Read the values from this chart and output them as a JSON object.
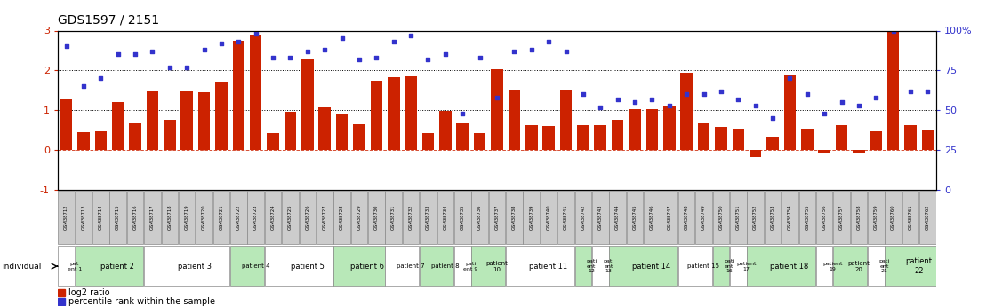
{
  "title": "GDS1597 / 2151",
  "gsm_labels": [
    "GSM38712",
    "GSM38713",
    "GSM38714",
    "GSM38715",
    "GSM38716",
    "GSM38717",
    "GSM38718",
    "GSM38719",
    "GSM38720",
    "GSM38721",
    "GSM38722",
    "GSM38723",
    "GSM38724",
    "GSM38725",
    "GSM38726",
    "GSM38727",
    "GSM38728",
    "GSM38729",
    "GSM38730",
    "GSM38731",
    "GSM38732",
    "GSM38733",
    "GSM38734",
    "GSM38735",
    "GSM38736",
    "GSM38737",
    "GSM38738",
    "GSM38739",
    "GSM38740",
    "GSM38741",
    "GSM38742",
    "GSM38743",
    "GSM38744",
    "GSM38745",
    "GSM38746",
    "GSM38747",
    "GSM38748",
    "GSM38749",
    "GSM38750",
    "GSM38751",
    "GSM38752",
    "GSM38753",
    "GSM38754",
    "GSM38755",
    "GSM38756",
    "GSM38757",
    "GSM38758",
    "GSM38759",
    "GSM38760",
    "GSM38761",
    "GSM38762"
  ],
  "log2_ratio": [
    1.28,
    0.45,
    0.48,
    1.2,
    0.68,
    1.48,
    0.75,
    1.48,
    1.45,
    1.72,
    2.75,
    2.9,
    0.42,
    0.95,
    2.3,
    1.08,
    0.92,
    0.65,
    1.75,
    1.82,
    1.85,
    0.42,
    0.98,
    0.68,
    0.42,
    2.02,
    1.52,
    0.62,
    0.6,
    1.52,
    0.62,
    0.62,
    0.75,
    1.02,
    1.02,
    1.12,
    1.95,
    0.68,
    0.58,
    0.52,
    -0.18,
    0.32,
    1.88,
    0.52,
    -0.08,
    0.62,
    -0.08,
    0.48,
    3.0,
    0.62,
    0.5
  ],
  "percentile": [
    90,
    65,
    70,
    85,
    85,
    87,
    77,
    77,
    88,
    92,
    93,
    98,
    83,
    83,
    87,
    88,
    95,
    82,
    83,
    93,
    97,
    82,
    85,
    48,
    83,
    58,
    87,
    88,
    93,
    87,
    60,
    52,
    57,
    55,
    57,
    53,
    60,
    60,
    62,
    57,
    53,
    45,
    70,
    60,
    48,
    55,
    53,
    58,
    100,
    62,
    62
  ],
  "patients": [
    {
      "label": "pat\nent 1",
      "start": 0,
      "end": 1,
      "green": false
    },
    {
      "label": "patient 2",
      "start": 1,
      "end": 5,
      "green": true
    },
    {
      "label": "patient 3",
      "start": 5,
      "end": 10,
      "green": false
    },
    {
      "label": "patient 4",
      "start": 10,
      "end": 12,
      "green": true
    },
    {
      "label": "patient 5",
      "start": 12,
      "end": 16,
      "green": false
    },
    {
      "label": "patient 6",
      "start": 16,
      "end": 19,
      "green": true
    },
    {
      "label": "patient 7",
      "start": 19,
      "end": 21,
      "green": false
    },
    {
      "label": "patient 8",
      "start": 21,
      "end": 23,
      "green": true
    },
    {
      "label": "pati\nent 9",
      "start": 23,
      "end": 24,
      "green": false
    },
    {
      "label": "patient\n10",
      "start": 24,
      "end": 26,
      "green": true
    },
    {
      "label": "patient 11",
      "start": 26,
      "end": 30,
      "green": false
    },
    {
      "label": "pati\nent\n12",
      "start": 30,
      "end": 31,
      "green": true
    },
    {
      "label": "pati\nent\n13",
      "start": 31,
      "end": 32,
      "green": false
    },
    {
      "label": "patient 14",
      "start": 32,
      "end": 36,
      "green": true
    },
    {
      "label": "patient 15",
      "start": 36,
      "end": 38,
      "green": false
    },
    {
      "label": "pati\nent\n16",
      "start": 38,
      "end": 39,
      "green": true
    },
    {
      "label": "patient\n17",
      "start": 39,
      "end": 40,
      "green": false
    },
    {
      "label": "patient 18",
      "start": 40,
      "end": 44,
      "green": true
    },
    {
      "label": "patient\n19",
      "start": 44,
      "end": 45,
      "green": false
    },
    {
      "label": "patient\n20",
      "start": 45,
      "end": 47,
      "green": true
    },
    {
      "label": "pati\nent\n21",
      "start": 47,
      "end": 48,
      "green": false
    },
    {
      "label": "patient\n22",
      "start": 48,
      "end": 51,
      "green": true
    }
  ],
  "bar_color": "#cc2200",
  "dot_color": "#3333cc",
  "ylim_left": [
    -1.0,
    3.0
  ],
  "right_ticks": [
    0,
    25,
    50,
    75,
    100
  ],
  "right_tick_labels": [
    "0",
    "25",
    "50",
    "75",
    "100%"
  ],
  "left_ticks": [
    -1,
    0,
    1,
    2,
    3
  ],
  "background_color": "#ffffff",
  "gsm_box_color": "#cccccc",
  "green_color": "#b8e8b8",
  "white_color": "#ffffff",
  "title_fontsize": 10
}
